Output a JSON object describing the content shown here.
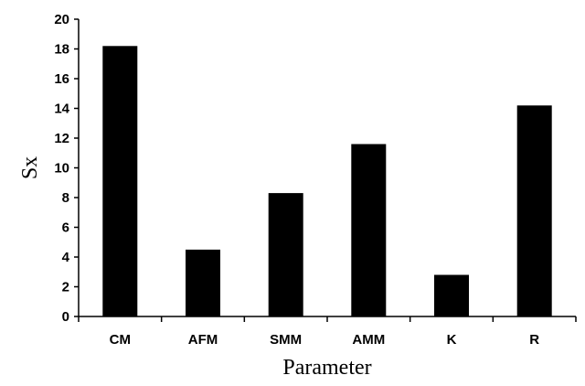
{
  "chart_data": {
    "type": "bar",
    "title": "",
    "xlabel": "Parameter",
    "ylabel": "Sx",
    "categories": [
      "CM",
      "AFM",
      "SMM",
      "AMM",
      "K",
      "R"
    ],
    "values": [
      18.2,
      4.5,
      8.3,
      11.6,
      2.8,
      14.2
    ],
    "ylim": [
      0,
      20
    ],
    "yticks": [
      0,
      2,
      4,
      6,
      8,
      10,
      12,
      14,
      16,
      18,
      20
    ],
    "grid": false,
    "legend": "none",
    "bar_color": "#000000"
  }
}
